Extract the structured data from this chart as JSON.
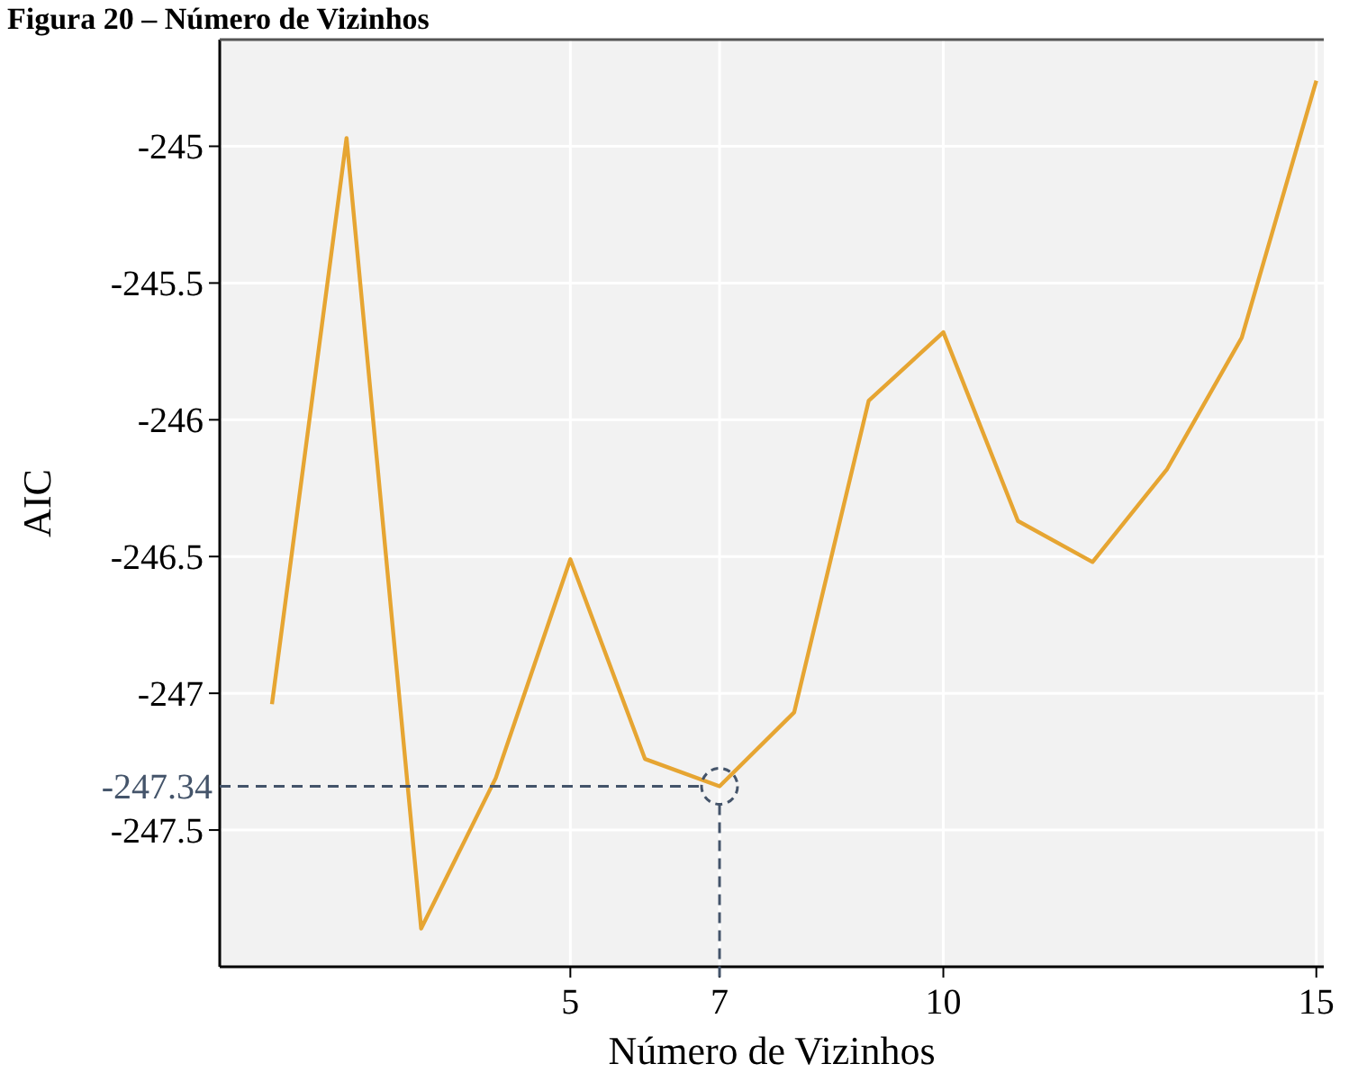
{
  "chart_data": {
    "type": "line",
    "title": "Figura 20 – Número de Vizinhos",
    "xlabel": "Número de Vizinhos",
    "ylabel": "AIC",
    "x": [
      1,
      2,
      3,
      4,
      5,
      6,
      7,
      8,
      9,
      10,
      11,
      12,
      13,
      14,
      15
    ],
    "series": [
      {
        "color": "#e6a532",
        "values": [
          -247.04,
          -244.97,
          -247.86,
          -247.31,
          -246.51,
          -247.24,
          -247.34,
          -247.07,
          -245.93,
          -245.68,
          -246.37,
          -246.52,
          -246.18,
          -245.7,
          -244.76
        ]
      }
    ],
    "xlim": [
      0.3,
      15.1
    ],
    "xticks": [
      5,
      7,
      10,
      15
    ],
    "ylim": [
      -248.0,
      -244.61
    ],
    "yticks": [
      -245,
      -245.5,
      -246,
      -246.5,
      -247,
      -247.5
    ],
    "grid": true,
    "marker": "none",
    "line_style": "solid",
    "ref_lines": [
      {
        "axis": "y",
        "value": -247.34,
        "label": "-247.34",
        "color": "#44546a",
        "line_style": "dashed"
      },
      {
        "axis": "x",
        "value": 7,
        "color": "#44546a",
        "line_style": "dashed"
      }
    ]
  }
}
